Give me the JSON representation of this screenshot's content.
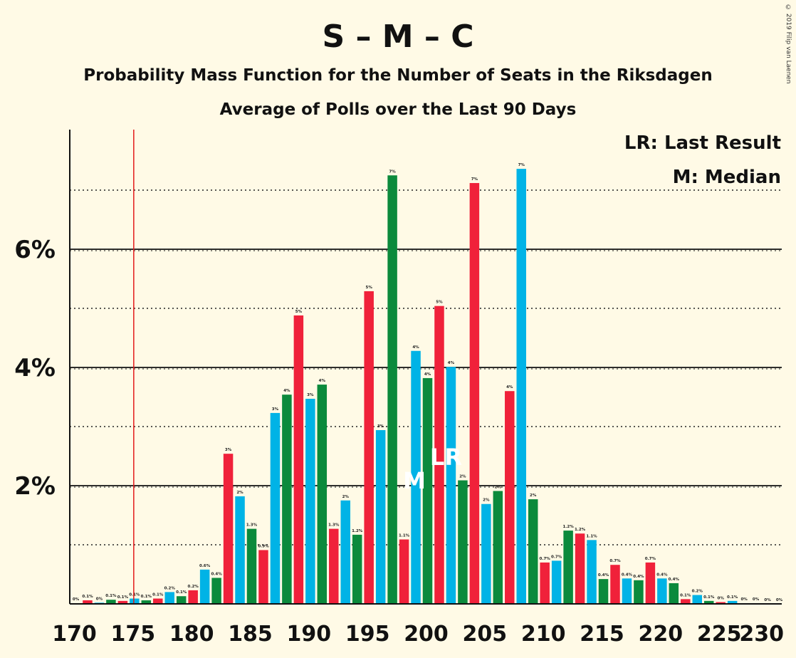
{
  "copyright": "© 2019 Filip van Laenen",
  "chart_data": {
    "type": "bar",
    "title": "S – M – C",
    "subtitle": "Probability Mass Function for the Number of Seats in the Riksdagen",
    "subtitle2": "Average of Polls over the Last 90 Days",
    "legend": [
      "LR: Last Result",
      "M: Median"
    ],
    "legend_position": "top-right",
    "x_ticks": [
      170,
      175,
      180,
      185,
      190,
      195,
      200,
      205,
      210,
      215,
      220,
      225,
      230
    ],
    "y_ticks": [
      "2%",
      "4%",
      "6%"
    ],
    "y_tick_values": [
      2,
      4,
      6
    ],
    "ylim": [
      0,
      8
    ],
    "xlim": [
      170,
      230
    ],
    "last_result": 175,
    "median": 199,
    "last_result_marker": "LR",
    "last_result_marker_seat": 202,
    "median_marker": "M",
    "colors": {
      "red": "#f0213a",
      "blue": "#00b3e6",
      "green": "#0b8a3c",
      "last_result_line": "#e3191b"
    },
    "seats": [
      170,
      171,
      172,
      173,
      174,
      175,
      176,
      177,
      178,
      179,
      180,
      181,
      182,
      183,
      184,
      185,
      186,
      187,
      188,
      189,
      190,
      191,
      192,
      193,
      194,
      195,
      196,
      197,
      198,
      199,
      200,
      201,
      202,
      203,
      204,
      205,
      206,
      207,
      208,
      209,
      210,
      211,
      212,
      213,
      214,
      215,
      216,
      217,
      218,
      219,
      220,
      221,
      222,
      223,
      224,
      225,
      226,
      227,
      228,
      229,
      230
    ],
    "values": [
      0.01,
      0.06,
      0.02,
      0.07,
      0.05,
      0.09,
      0.06,
      0.09,
      0.2,
      0.13,
      0.23,
      0.58,
      0.44,
      2.54,
      1.82,
      1.27,
      0.91,
      3.23,
      3.54,
      4.88,
      3.47,
      3.71,
      1.27,
      1.75,
      1.17,
      5.29,
      2.94,
      7.25,
      1.09,
      4.28,
      3.82,
      5.04,
      4.01,
      2.09,
      7.12,
      1.69,
      1.91,
      3.6,
      7.36,
      1.77,
      0.7,
      0.73,
      1.24,
      1.19,
      1.08,
      0.42,
      0.66,
      0.43,
      0.4,
      0.7,
      0.43,
      0.35,
      0.08,
      0.15,
      0.05,
      0.03,
      0.05,
      0.01,
      0.01,
      0.0,
      0.0
    ],
    "data_labels": [
      "0%",
      "0.1%",
      "0%",
      "0.1%",
      "0.1%",
      "0.1%",
      "0.1%",
      "0.1%",
      "0.2%",
      "0.1%",
      "0.2%",
      "0.6%",
      "0.4%",
      "3%",
      "2%",
      "1.3%",
      "0.9%",
      "3%",
      "4%",
      "5%",
      "3%",
      "4%",
      "1.3%",
      "2%",
      "1.2%",
      "5%",
      "3%",
      "7%",
      "1.1%",
      "4%",
      "4%",
      "5%",
      "4%",
      "2%",
      "7%",
      "2%",
      "2%",
      "4%",
      "7%",
      "2%",
      "0.7%",
      "0.7%",
      "1.2%",
      "1.2%",
      "1.1%",
      "0.4%",
      "0.7%",
      "0.4%",
      "0.4%",
      "0.7%",
      "0.4%",
      "0.4%",
      "0.1%",
      "0.2%",
      "0.1%",
      "0%",
      "0.1%",
      "0%",
      "0%",
      "0%",
      "0%"
    ],
    "bar_colors": [
      "red",
      "red",
      "blue",
      "green",
      "red",
      "blue",
      "green",
      "red",
      "blue",
      "green",
      "red",
      "blue",
      "green",
      "red",
      "blue",
      "green",
      "red",
      "blue",
      "green",
      "red",
      "blue",
      "green",
      "red",
      "blue",
      "green",
      "red",
      "blue",
      "green",
      "red",
      "blue",
      "green",
      "red",
      "blue",
      "green",
      "red",
      "blue",
      "green",
      "red",
      "blue",
      "green",
      "red",
      "blue",
      "green",
      "red",
      "blue",
      "green",
      "red",
      "blue",
      "green",
      "red",
      "blue",
      "green",
      "red",
      "blue",
      "green",
      "red",
      "blue",
      "green",
      "red",
      "blue",
      "green"
    ]
  }
}
